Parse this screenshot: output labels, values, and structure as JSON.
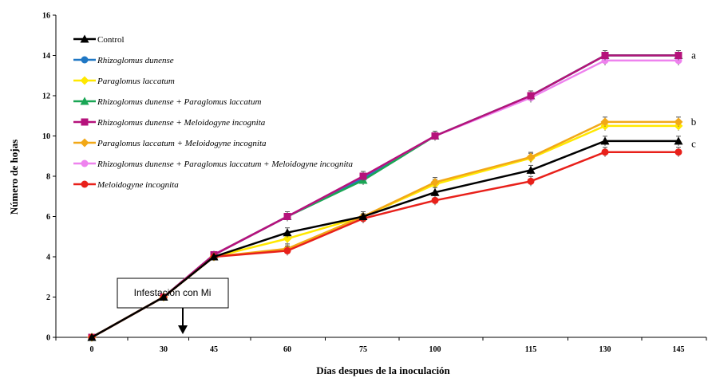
{
  "chart_data": {
    "type": "line",
    "xlabel": "Días despues de la inoculación",
    "ylabel": "Número de hojas",
    "categories": [
      "0",
      "30",
      "45",
      "60",
      "75",
      "100",
      "115",
      "130",
      "145"
    ],
    "ylim": [
      0,
      16
    ],
    "yticks": [
      "0",
      "2",
      "4",
      "6",
      "8",
      "10",
      "12",
      "14",
      "16"
    ],
    "grid": false,
    "legend_position": "top-left",
    "series": [
      {
        "name": "Control",
        "color": "#000000",
        "marker": "triangle",
        "values": [
          0,
          2,
          4,
          5.2,
          6,
          7.2,
          8.3,
          9.75,
          9.75
        ]
      },
      {
        "name": "Rhizoglomus dunense",
        "color": "#1f77c4",
        "marker": "circle",
        "values": [
          0,
          2,
          4.1,
          6,
          7.9,
          10,
          12,
          14,
          14
        ]
      },
      {
        "name": "Paraglomus laccatum",
        "color": "#ffe800",
        "marker": "diamond",
        "values": [
          0,
          2,
          4,
          4.9,
          6,
          7.6,
          8.9,
          10.5,
          10.5
        ]
      },
      {
        "name": "Rhizoglomus dunense + Paraglomus laccatum",
        "color": "#1aa655",
        "marker": "triangle",
        "values": [
          0,
          2,
          4.1,
          6,
          7.8,
          10,
          12,
          14,
          14
        ]
      },
      {
        "name": "Rhizoglomus dunense + Meloidogyne incognita",
        "color": "#b5127b",
        "marker": "square",
        "values": [
          0,
          2,
          4.1,
          6,
          8,
          10,
          12,
          14,
          14
        ]
      },
      {
        "name": "Paraglomus laccatum + Meloidogyne incognita",
        "color": "#f2a817",
        "marker": "diamond",
        "values": [
          0,
          2,
          4,
          4.4,
          6,
          7.7,
          8.95,
          10.7,
          10.7
        ]
      },
      {
        "name": "Rhizoglomus dunense + Paraglomus laccatum + Meloidogyne incognita",
        "color": "#ee82ee",
        "marker": "circle",
        "values": [
          0,
          2,
          4.1,
          6,
          8,
          10,
          11.9,
          13.75,
          13.75
        ]
      },
      {
        "name": "Meloidogyne incognita",
        "color": "#e8201a",
        "marker": "circle",
        "values": [
          0,
          2,
          4,
          4.3,
          5.9,
          6.8,
          7.75,
          9.2,
          9.2
        ]
      }
    ],
    "significance_letters": [
      {
        "label": "a",
        "y": 14
      },
      {
        "label": "b",
        "y": 10.7
      },
      {
        "label": "c",
        "y": 9.6
      }
    ],
    "annotation": {
      "text": "Infestación con  Mi",
      "at_x": "30"
    }
  }
}
